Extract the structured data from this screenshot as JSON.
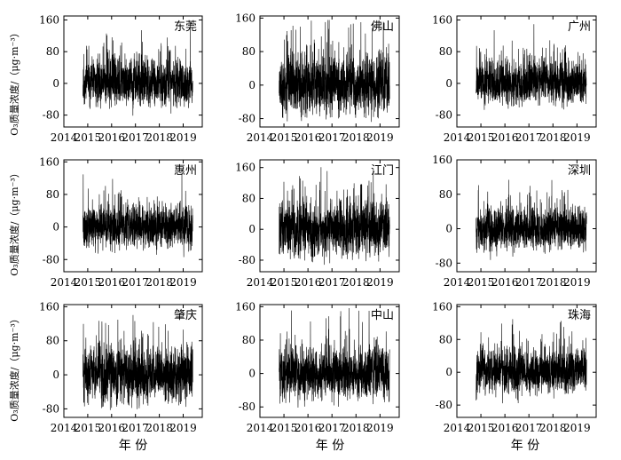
{
  "figure": {
    "row_ylabels": [
      "O₃质量浓度/（μg·m⁻³）",
      "O₃质量浓度/（μg·m⁻³）",
      "O₃质量浓度/（μg·m⁻³）"
    ],
    "col_xlabels": [
      "年 份",
      "年 份",
      "年 份"
    ]
  },
  "chart_data": [
    {
      "type": "line",
      "title": "东莞",
      "x_ticks": [
        "2014",
        "2015",
        "2016",
        "2017",
        "2018",
        "2019"
      ],
      "y_ticks": [
        "160",
        "80",
        "0",
        "-80"
      ],
      "ylim": [
        -110,
        170
      ],
      "xlim": [
        2014.0,
        2019.8
      ],
      "series_x_range": [
        2014.8,
        2019.4
      ],
      "amplitude": 45,
      "seed": 11
    },
    {
      "type": "line",
      "title": "佛山",
      "x_ticks": [
        "2014",
        "2015",
        "2016",
        "2017",
        "2018",
        "2019"
      ],
      "y_ticks": [
        "160",
        "80",
        "0",
        "-80"
      ],
      "ylim": [
        -100,
        165
      ],
      "xlim": [
        2014.0,
        2019.8
      ],
      "series_x_range": [
        2014.8,
        2019.4
      ],
      "amplitude": 55,
      "seed": 23
    },
    {
      "type": "line",
      "title": "广州",
      "x_ticks": [
        "2014",
        "2015",
        "2016",
        "2017",
        "2018",
        "2019"
      ],
      "y_ticks": [
        "160",
        "80",
        "0",
        "-80"
      ],
      "ylim": [
        -110,
        170
      ],
      "xlim": [
        2014.0,
        2019.8
      ],
      "series_x_range": [
        2014.8,
        2019.4
      ],
      "amplitude": 42,
      "seed": 37
    },
    {
      "type": "line",
      "title": "惠州",
      "x_ticks": [
        "2014",
        "2015",
        "2016",
        "2017",
        "2018",
        "2019"
      ],
      "y_ticks": [
        "160",
        "80",
        "0",
        "-80"
      ],
      "ylim": [
        -110,
        165
      ],
      "xlim": [
        2014.0,
        2019.8
      ],
      "series_x_range": [
        2014.8,
        2019.4
      ],
      "amplitude": 40,
      "seed": 41
    },
    {
      "type": "line",
      "title": "江门",
      "x_ticks": [
        "2014",
        "2015",
        "2016",
        "2017",
        "2018",
        "2019"
      ],
      "y_ticks": [
        "160",
        "80",
        "0",
        "-80"
      ],
      "ylim": [
        -110,
        180
      ],
      "xlim": [
        2014.0,
        2019.8
      ],
      "series_x_range": [
        2014.8,
        2019.4
      ],
      "amplitude": 55,
      "seed": 53
    },
    {
      "type": "line",
      "title": "深圳",
      "x_ticks": [
        "2014",
        "2015",
        "2016",
        "2017",
        "2018",
        "2019"
      ],
      "y_ticks": [
        "160",
        "80",
        "0",
        "-80"
      ],
      "ylim": [
        -100,
        160
      ],
      "xlim": [
        2014.0,
        2019.8
      ],
      "series_x_range": [
        2014.8,
        2019.4
      ],
      "amplitude": 38,
      "seed": 67
    },
    {
      "type": "line",
      "title": "肇庆",
      "x_ticks": [
        "2014",
        "2015",
        "2016",
        "2017",
        "2018",
        "2019"
      ],
      "y_ticks": [
        "160",
        "80",
        "0",
        "-80"
      ],
      "ylim": [
        -100,
        165
      ],
      "xlim": [
        2014.0,
        2019.8
      ],
      "series_x_range": [
        2014.8,
        2019.4
      ],
      "amplitude": 52,
      "seed": 71
    },
    {
      "type": "line",
      "title": "中山",
      "x_ticks": [
        "2014",
        "2015",
        "2016",
        "2017",
        "2018",
        "2019"
      ],
      "y_ticks": [
        "160",
        "80",
        "0",
        "-80"
      ],
      "ylim": [
        -105,
        165
      ],
      "xlim": [
        2014.0,
        2019.8
      ],
      "series_x_range": [
        2014.8,
        2019.4
      ],
      "amplitude": 50,
      "seed": 83
    },
    {
      "type": "line",
      "title": "珠海",
      "x_ticks": [
        "2014",
        "2015",
        "2016",
        "2017",
        "2018",
        "2019"
      ],
      "y_ticks": [
        "160",
        "80",
        "0",
        "-80"
      ],
      "ylim": [
        -110,
        165
      ],
      "xlim": [
        2014.0,
        2019.8
      ],
      "series_x_range": [
        2014.8,
        2019.4
      ],
      "amplitude": 42,
      "seed": 97
    }
  ]
}
